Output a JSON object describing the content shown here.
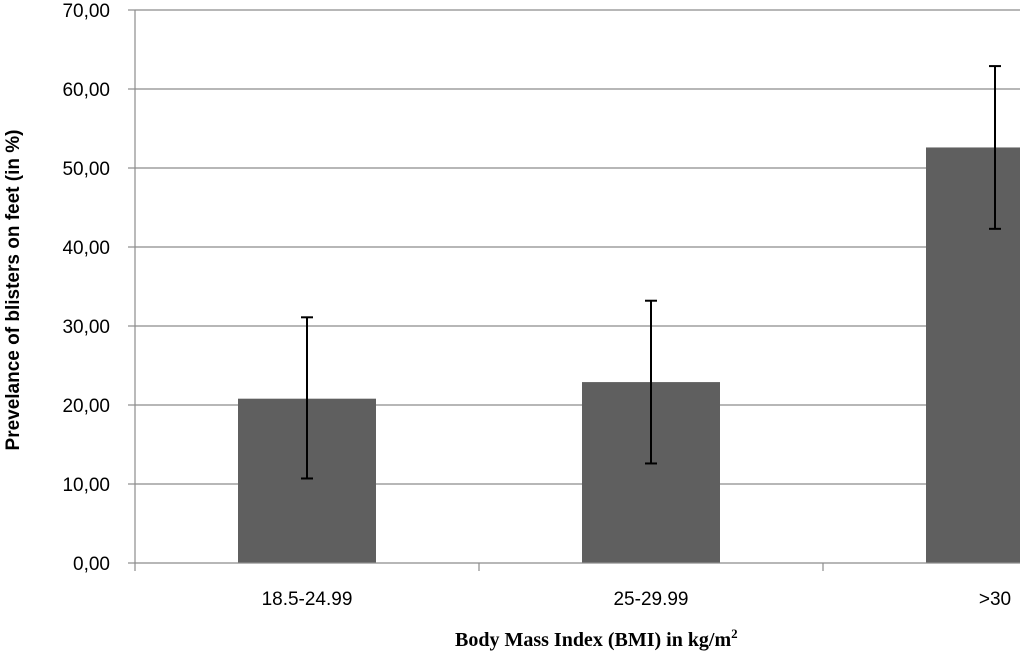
{
  "chart_data": {
    "type": "bar",
    "categories": [
      "18.5-24.99",
      "25-29.99",
      ">30"
    ],
    "values": [
      20.8,
      22.9,
      52.6
    ],
    "error_low": [
      10.7,
      12.6,
      42.3
    ],
    "error_high": [
      31.1,
      33.2,
      62.9
    ],
    "ylim": [
      0,
      70
    ],
    "yticks": [
      0,
      10,
      20,
      30,
      40,
      50,
      60,
      70
    ],
    "ytick_labels": [
      "0,00",
      "10,00",
      "20,00",
      "30,00",
      "40,00",
      "50,00",
      "60,00",
      "70,00"
    ],
    "ylabel": "Prevelance of blisters on feet (in %)",
    "xlabel": "Body Mass Index (BMI) in kg/m",
    "xlabel_superscript": "2",
    "grid": true,
    "bar_color": "#5f5f5f",
    "grid_color": "#8c8c8c"
  }
}
